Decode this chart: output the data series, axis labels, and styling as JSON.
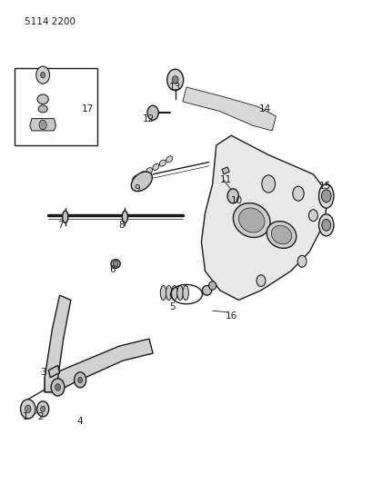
{
  "title": "5114 2200",
  "background_color": "#ffffff",
  "line_color": "#1a1a1a",
  "text_color": "#1a1a1a",
  "figsize": [
    4.1,
    5.33
  ],
  "dpi": 100
}
